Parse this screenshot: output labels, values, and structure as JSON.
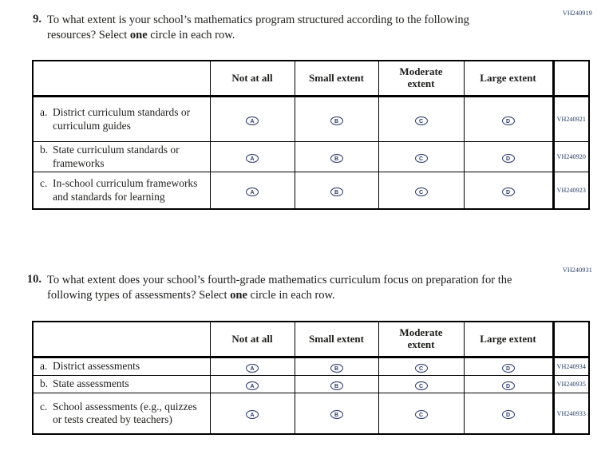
{
  "colors": {
    "ink": "#1d1d1b",
    "navy_accent": "#203a68",
    "table_border": "#000000"
  },
  "bubble_letters": [
    "A",
    "B",
    "C",
    "D"
  ],
  "columns": [
    "Not at all",
    "Small extent",
    "Moderate extent",
    "Large extent"
  ],
  "questions": [
    {
      "number": "9.",
      "code": "VH240919",
      "text_pre": "To what extent is your school’s mathematics program structured according to the following resources? Select ",
      "text_bold": "one",
      "text_post": " circle in each row.",
      "rows": [
        {
          "prefix": "a.",
          "label": "District curriculum standards or curriculum guides",
          "code": "VH240921"
        },
        {
          "prefix": "b.",
          "label": "State curriculum standards or frameworks",
          "code": "VH240920"
        },
        {
          "prefix": "c.",
          "label": "In-school curriculum frameworks and standards for learning",
          "code": "VH240923"
        }
      ]
    },
    {
      "number": "10.",
      "code": "VH240931",
      "text_pre": "To what extent does your school’s fourth-grade mathematics curriculum focus on preparation for the following types of assessments? Select ",
      "text_bold": "one",
      "text_post": " circle in each row.",
      "rows": [
        {
          "prefix": "a.",
          "label": "District assessments",
          "code": "VH240934"
        },
        {
          "prefix": "b.",
          "label": "State assessments",
          "code": "VH240935"
        },
        {
          "prefix": "c.",
          "label": "School assessments (e.g., quizzes or tests created by teachers)",
          "code": "VH240933"
        }
      ]
    }
  ]
}
